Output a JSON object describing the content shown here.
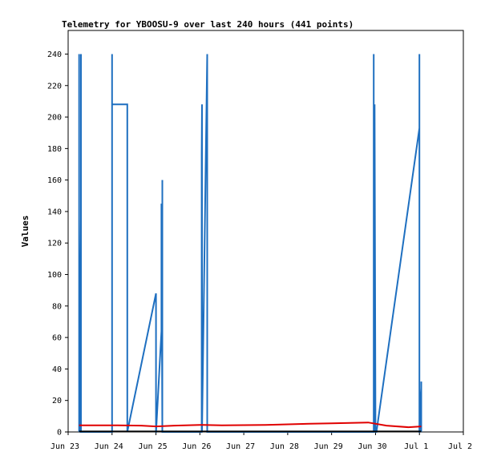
{
  "chart_data": {
    "type": "line",
    "title": "Telemetry for YBOOSU-9 over last 240 hours (441 points)",
    "xlabel": "",
    "ylabel": "Values",
    "ylim": [
      0,
      255
    ],
    "xlim": [
      "2024-06-23T00:00",
      "2024-07-02T00:00"
    ],
    "x_ticks": [
      "Jun 23",
      "Jun 24",
      "Jun 25",
      "Jun 26",
      "Jun 27",
      "Jun 28",
      "Jun 29",
      "Jun 30",
      "Jul 1",
      "Jul 2"
    ],
    "y_ticks": [
      0,
      20,
      40,
      60,
      80,
      100,
      120,
      140,
      160,
      180,
      200,
      220,
      240
    ],
    "grid": false,
    "series": [
      {
        "color": "#1e6fc0",
        "x": [
          "2024-06-23T06:00",
          "2024-06-23T06:00",
          "2024-06-23T06:00",
          "2024-06-23T06:05",
          "2024-06-23T06:10",
          "2024-06-23T06:15",
          "2024-06-23T06:20",
          "2024-06-23T06:25",
          "2024-06-23T06:30",
          "2024-06-23T06:35",
          "2024-06-23T06:40",
          "2024-06-23T06:45",
          "2024-06-23T06:50",
          "2024-06-23T07:00",
          "2024-06-23T07:00",
          "2024-06-23T07:00",
          "2024-06-23T08:00",
          "2024-06-23T08:00",
          "2024-06-23T08:00",
          "2024-06-24T00:00",
          "2024-06-24T00:00",
          "2024-06-24T00:00",
          "2024-06-24T00:05",
          "2024-06-24T08:00",
          "2024-06-24T08:00",
          "2024-06-24T08:20",
          "2024-06-24T08:20",
          "2024-06-25T00:00",
          "2024-06-25T00:00",
          "2024-06-25T00:05",
          "2024-06-25T00:05",
          "2024-06-25T03:00",
          "2024-06-25T03:00",
          "2024-06-25T03:30",
          "2024-06-25T03:30",
          "2024-06-25T03:30",
          "2024-06-26T01:00",
          "2024-06-26T01:00",
          "2024-06-26T01:10",
          "2024-06-26T01:10",
          "2024-06-26T04:00",
          "2024-06-26T04:00",
          "2024-06-26T04:00",
          "2024-06-29T23:00",
          "2024-06-29T23:00",
          "2024-06-29T23:00",
          "2024-06-29T23:10",
          "2024-06-29T23:20",
          "2024-06-29T23:30",
          "2024-06-29T23:30",
          "2024-06-30T00:00",
          "2024-06-30T00:00",
          "2024-06-30T00:30",
          "2024-07-01T00:00",
          "2024-07-01T00:00",
          "2024-07-01T00:00",
          "2024-07-01T00:05",
          "2024-07-01T00:30",
          "2024-07-01T01:00",
          "2024-07-01T01:00",
          "2024-07-01T01:00"
        ],
        "y": [
          0,
          240,
          136,
          120,
          104,
          88,
          72,
          56,
          40,
          24,
          8,
          0,
          0,
          0,
          240,
          0,
          0,
          0,
          0,
          0,
          240,
          208,
          208,
          208,
          208,
          208,
          0,
          88,
          0,
          0,
          0,
          64,
          145,
          0,
          160,
          0,
          0,
          176,
          208,
          0,
          240,
          0,
          0,
          0,
          240,
          0,
          40,
          56,
          0,
          208,
          0,
          0,
          0,
          193,
          240,
          0,
          0,
          17,
          28,
          32,
          0
        ]
      },
      {
        "color": "#e00000",
        "x": [
          "2024-06-23T06:00",
          "2024-06-24T03:00",
          "2024-06-24T16:00",
          "2024-06-25T00:00",
          "2024-06-25T10:00",
          "2024-06-26T00:00",
          "2024-06-26T12:00",
          "2024-06-27T12:00",
          "2024-06-28T12:00",
          "2024-06-29T00:00",
          "2024-06-29T20:00",
          "2024-06-30T06:00",
          "2024-06-30T18:00",
          "2024-07-01T01:00"
        ],
        "y": [
          4.2,
          4.2,
          4.0,
          3.5,
          4.0,
          4.5,
          4.2,
          4.5,
          5.2,
          5.5,
          6.0,
          4.0,
          3.0,
          3.5
        ]
      },
      {
        "color": "#000000",
        "x": [
          "2024-06-23T06:00",
          "2024-07-01T01:00"
        ],
        "y": [
          0.3,
          0.3
        ]
      }
    ]
  }
}
